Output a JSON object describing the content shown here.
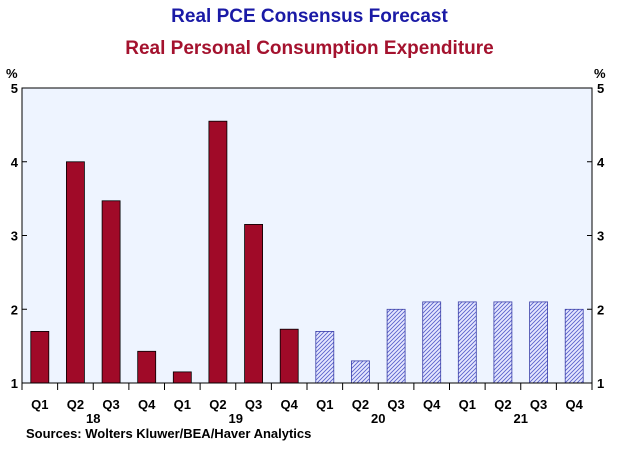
{
  "chart_data": {
    "type": "bar",
    "title": "Real PCE Consensus Forecast",
    "subtitle": "Real Personal Consumption Expenditure",
    "unit_left": "%",
    "unit_right": "%",
    "ylim": [
      1,
      5
    ],
    "yticks": [
      1,
      2,
      3,
      4,
      5
    ],
    "categories": [
      "Q1",
      "Q2",
      "Q3",
      "Q4",
      "Q1",
      "Q2",
      "Q3",
      "Q4",
      "Q1",
      "Q2",
      "Q3",
      "Q4",
      "Q1",
      "Q2",
      "Q3",
      "Q4"
    ],
    "year_labels": [
      {
        "label": "18",
        "start": 0,
        "end": 3
      },
      {
        "label": "19",
        "start": 4,
        "end": 7
      },
      {
        "label": "20",
        "start": 8,
        "end": 11
      },
      {
        "label": "21",
        "start": 12,
        "end": 15
      }
    ],
    "series": [
      {
        "values": [
          1.7,
          4.0,
          3.47,
          1.43,
          1.15,
          4.55,
          3.15,
          1.73,
          null,
          null,
          null,
          null,
          null,
          null,
          null,
          null
        ],
        "color": "#a00a28",
        "style": "solid"
      },
      {
        "values": [
          null,
          null,
          null,
          null,
          null,
          null,
          null,
          null,
          1.7,
          1.3,
          2.0,
          2.1,
          2.1,
          2.1,
          2.1,
          2.0
        ],
        "color": "#6e74d6",
        "style": "hatched"
      }
    ],
    "source": "Sources:   Wolters Kluwer/BEA/Haver Analytics",
    "plot_background": "#eef4ff"
  }
}
